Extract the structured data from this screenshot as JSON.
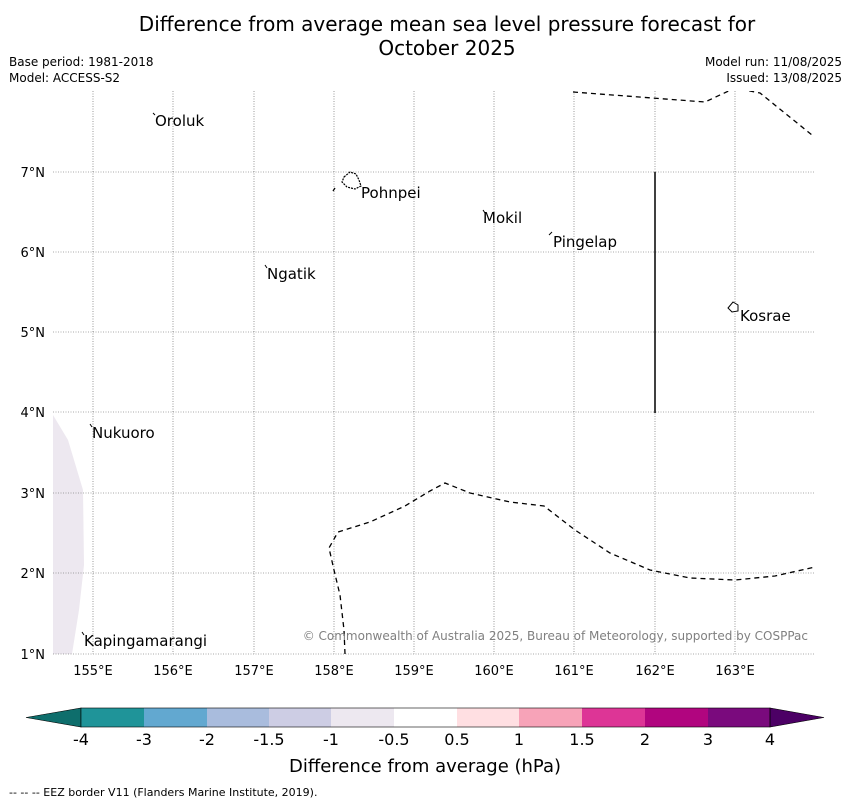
{
  "title_line1": "Difference from average mean sea level pressure forecast for",
  "title_line2": "October 2025",
  "base_period": "Base period: 1981-2018",
  "model": "Model: ACCESS-S2",
  "model_run": "Model run: 11/08/2025",
  "issued": "Issued: 13/08/2025",
  "map": {
    "lon_ticks": [
      "155°E",
      "156°E",
      "157°E",
      "158°E",
      "159°E",
      "160°E",
      "161°E",
      "162°E",
      "163°E"
    ],
    "lat_ticks": [
      "7°N",
      "6°N",
      "5°N",
      "4°N",
      "3°N",
      "2°N",
      "1°N"
    ],
    "places": [
      "Oroluk",
      "Pohnpei",
      "Mokil",
      "Pingelap",
      "Ngatik",
      "Kosrae",
      "Nukuoro",
      "Kapingamarangi"
    ],
    "copyright": "© Commonwealth of Australia 2025, Bureau of Meteorology, supported by COSPPac"
  },
  "colorbar": {
    "title": "Difference from average (hPa)",
    "labels": [
      "-4",
      "-3",
      "-2",
      "-1.5",
      "-1",
      "-0.5",
      "0.5",
      "1",
      "1.5",
      "2",
      "3",
      "4"
    ],
    "colors": [
      "#0e6e6c",
      "#1f9499",
      "#62a8d0",
      "#a9bcdd",
      "#cdcde4",
      "#ede8f0",
      "#ffffff",
      "#ffdfe2",
      "#f7a3b8",
      "#dd3596",
      "#b1057f",
      "#7a0a7d",
      "#4c0065"
    ]
  },
  "footer": "--  --  -- EEZ border V11 (Flanders Marine Institute, 2019)."
}
